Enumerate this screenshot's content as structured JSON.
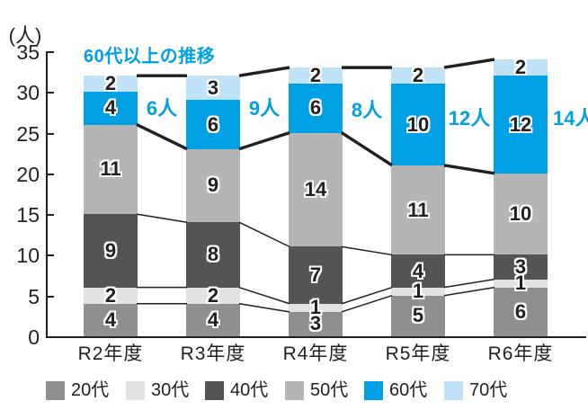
{
  "chart_data": {
    "type": "bar",
    "stacked": true,
    "title": "",
    "ylabel_unit": "(人)",
    "annotation": "60代以上の推移",
    "categories": [
      "R2年度",
      "R3年度",
      "R4年度",
      "R5年度",
      "R6年度"
    ],
    "series": [
      {
        "name": "20代",
        "color": "#8f8f90",
        "values": [
          4,
          4,
          3,
          5,
          6
        ]
      },
      {
        "name": "30代",
        "color": "#e2e2e2",
        "values": [
          2,
          2,
          1,
          1,
          1
        ]
      },
      {
        "name": "40代",
        "color": "#565354",
        "values": [
          9,
          8,
          7,
          4,
          3
        ]
      },
      {
        "name": "50代",
        "color": "#b5b5b6",
        "values": [
          11,
          9,
          14,
          11,
          10
        ]
      },
      {
        "name": "60代",
        "color": "#00a0e4",
        "values": [
          4,
          6,
          6,
          10,
          12
        ]
      },
      {
        "name": "70代",
        "color": "#bfe2f6",
        "values": [
          2,
          3,
          2,
          2,
          2
        ]
      }
    ],
    "gap_labels": [
      "6人",
      "9人",
      "8人",
      "12人",
      "14人"
    ],
    "y_ticks": [
      0,
      5,
      10,
      15,
      20,
      25,
      30,
      35
    ],
    "ylim": [
      0,
      35
    ],
    "grid": false,
    "legend_position": "bottom",
    "connector_lines": {
      "thin_after_series": [
        0,
        1,
        2
      ],
      "thick_after_series": [
        3,
        5
      ]
    }
  },
  "colors": {
    "ink": "#231f20",
    "accent_blue": "#00a0e4",
    "background": "#ffffff"
  }
}
